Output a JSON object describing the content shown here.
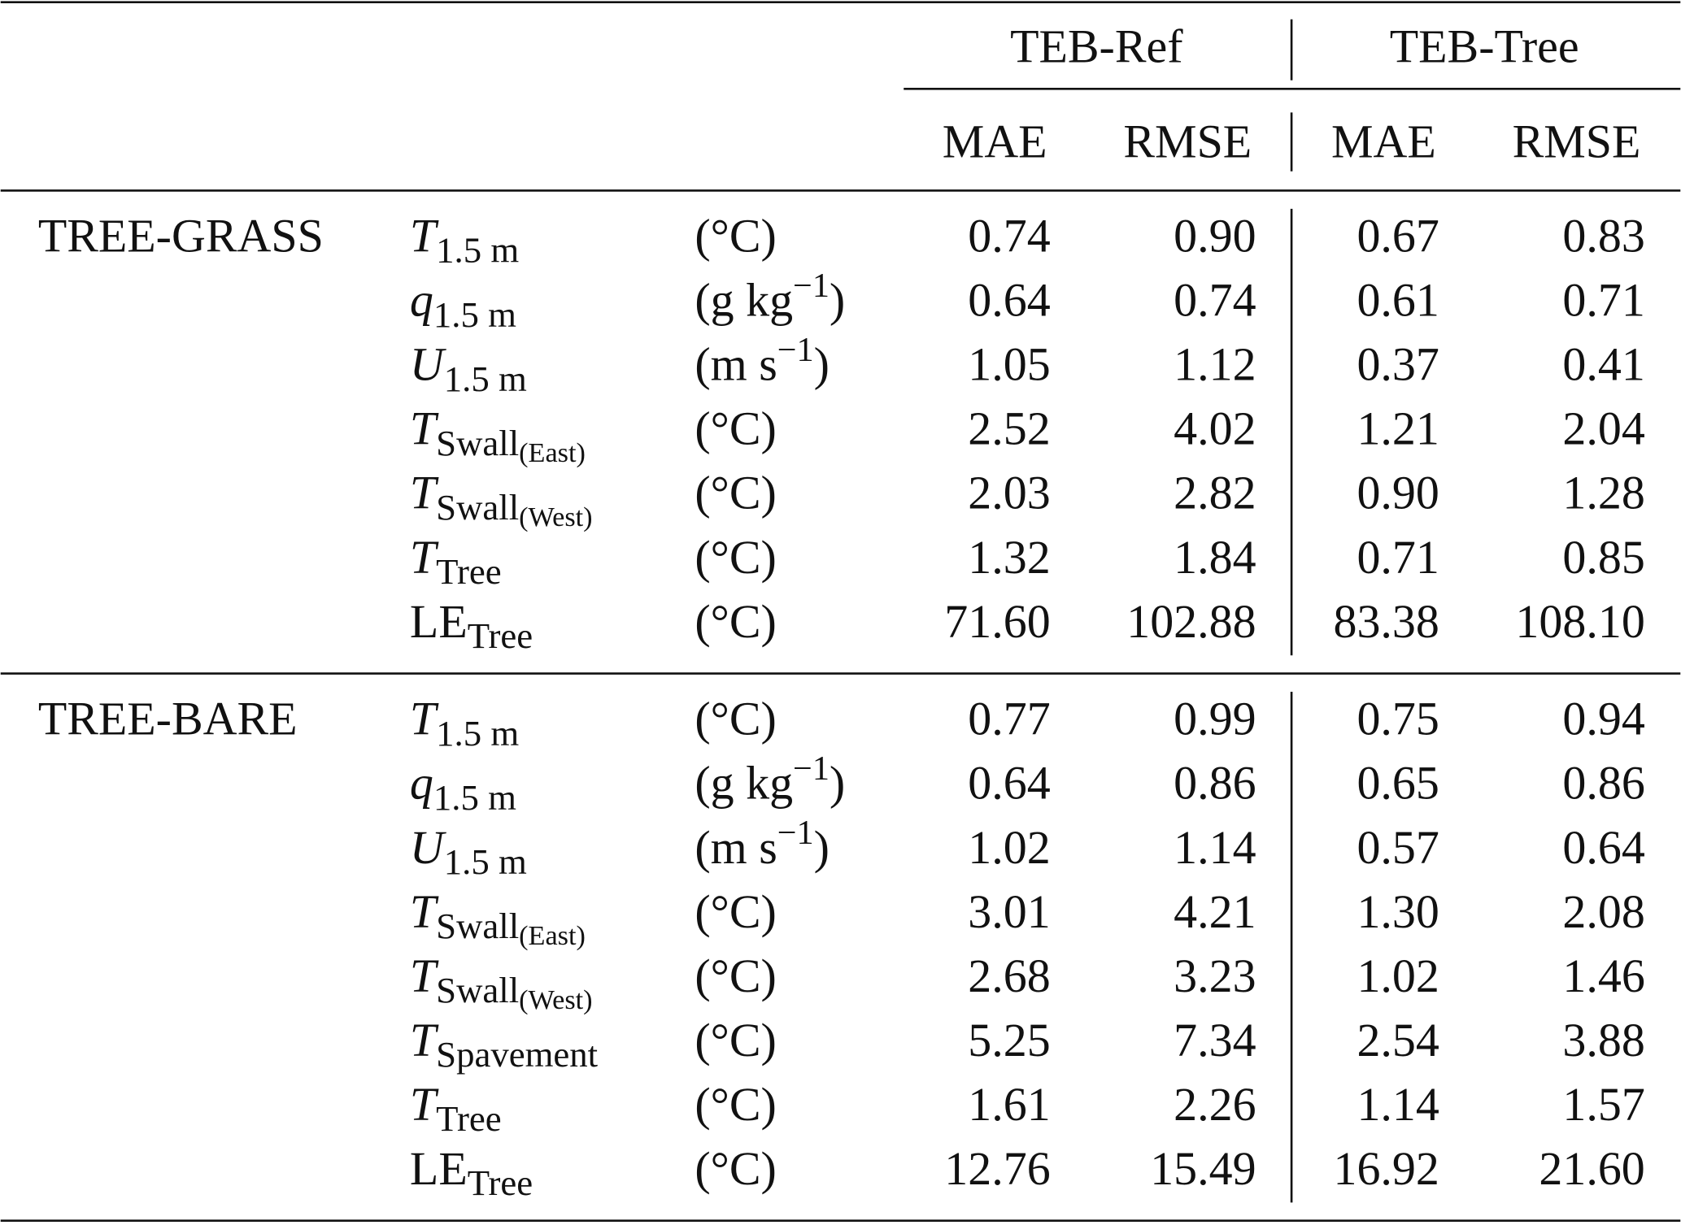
{
  "header": {
    "groups": [
      "TEB-Ref",
      "TEB-Tree"
    ],
    "metrics": [
      "MAE",
      "RMSE",
      "MAE",
      "RMSE"
    ]
  },
  "sections": [
    {
      "label": "TREE-GRASS",
      "rows": [
        {
          "var": {
            "base": "T",
            "italic": true,
            "sub": "1.5 m"
          },
          "unit": {
            "text": "(°C)"
          },
          "values": [
            "0.74",
            "0.90",
            "0.67",
            "0.83"
          ]
        },
        {
          "var": {
            "base": "q",
            "italic": true,
            "sub": "1.5 m"
          },
          "unit": {
            "text": "(g kg",
            "sup": "−1",
            "close": ")"
          },
          "values": [
            "0.64",
            "0.74",
            "0.61",
            "0.71"
          ]
        },
        {
          "var": {
            "base": "U",
            "italic": true,
            "sub": "1.5 m"
          },
          "unit": {
            "text": "(m s",
            "sup": "−1",
            "close": ")"
          },
          "values": [
            "1.05",
            "1.12",
            "0.37",
            "0.41"
          ]
        },
        {
          "var": {
            "base": "T",
            "italic": true,
            "sub": "Swall",
            "subsub": "(East)"
          },
          "unit": {
            "text": "(°C)"
          },
          "values": [
            "2.52",
            "4.02",
            "1.21",
            "2.04"
          ]
        },
        {
          "var": {
            "base": "T",
            "italic": true,
            "sub": "Swall",
            "subsub": "(West)"
          },
          "unit": {
            "text": "(°C)"
          },
          "values": [
            "2.03",
            "2.82",
            "0.90",
            "1.28"
          ]
        },
        {
          "var": {
            "base": "T",
            "italic": true,
            "sub": "Tree"
          },
          "unit": {
            "text": "(°C)"
          },
          "values": [
            "1.32",
            "1.84",
            "0.71",
            "0.85"
          ]
        },
        {
          "var": {
            "base": "LE",
            "italic": false,
            "sub": "Tree"
          },
          "unit": {
            "text": "(°C)"
          },
          "values": [
            "71.60",
            "102.88",
            "83.38",
            "108.10"
          ]
        }
      ]
    },
    {
      "label": "TREE-BARE",
      "rows": [
        {
          "var": {
            "base": "T",
            "italic": true,
            "sub": "1.5 m"
          },
          "unit": {
            "text": "(°C)"
          },
          "values": [
            "0.77",
            "0.99",
            "0.75",
            "0.94"
          ]
        },
        {
          "var": {
            "base": "q",
            "italic": true,
            "sub": "1.5 m"
          },
          "unit": {
            "text": "(g kg",
            "sup": "−1",
            "close": ")"
          },
          "values": [
            "0.64",
            "0.86",
            "0.65",
            "0.86"
          ]
        },
        {
          "var": {
            "base": "U",
            "italic": true,
            "sub": "1.5 m"
          },
          "unit": {
            "text": "(m s",
            "sup": "−1",
            "close": ")"
          },
          "values": [
            "1.02",
            "1.14",
            "0.57",
            "0.64"
          ]
        },
        {
          "var": {
            "base": "T",
            "italic": true,
            "sub": "Swall",
            "subsub": "(East)"
          },
          "unit": {
            "text": "(°C)"
          },
          "values": [
            "3.01",
            "4.21",
            "1.30",
            "2.08"
          ]
        },
        {
          "var": {
            "base": "T",
            "italic": true,
            "sub": "Swall",
            "subsub": "(West)"
          },
          "unit": {
            "text": "(°C)"
          },
          "values": [
            "2.68",
            "3.23",
            "1.02",
            "1.46"
          ]
        },
        {
          "var": {
            "base": "T",
            "italic": true,
            "sub": "Spavement"
          },
          "unit": {
            "text": "(°C)"
          },
          "values": [
            "5.25",
            "7.34",
            "2.54",
            "3.88"
          ]
        },
        {
          "var": {
            "base": "T",
            "italic": true,
            "sub": "Tree"
          },
          "unit": {
            "text": "(°C)"
          },
          "values": [
            "1.61",
            "2.26",
            "1.14",
            "1.57"
          ]
        },
        {
          "var": {
            "base": "LE",
            "italic": false,
            "sub": "Tree"
          },
          "unit": {
            "text": "(°C)"
          },
          "values": [
            "12.76",
            "15.49",
            "16.92",
            "21.60"
          ]
        }
      ]
    }
  ]
}
